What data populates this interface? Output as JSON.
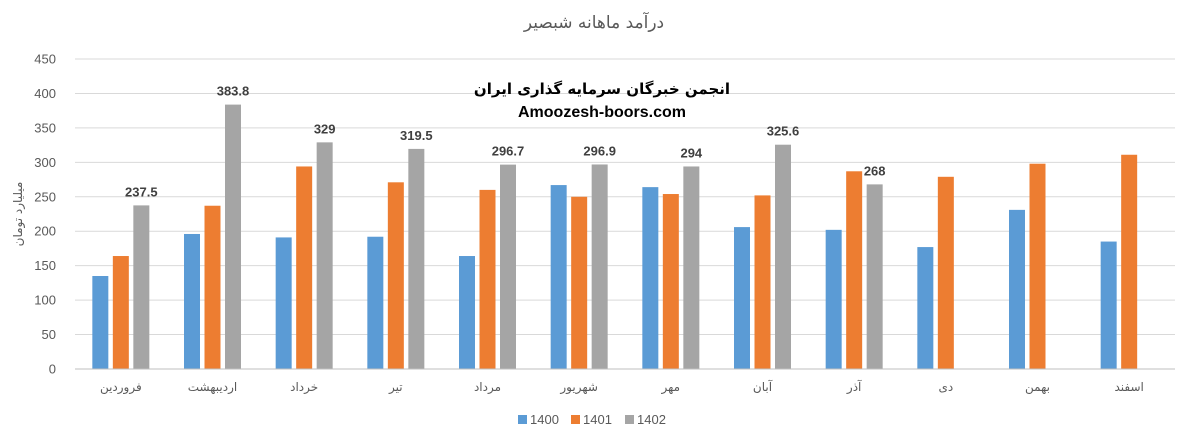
{
  "chart_data": {
    "type": "bar",
    "title": "درآمد ماهانه شبصیر",
    "ylabel": "میلیارد تومان",
    "xlabel": "",
    "ylim": [
      0,
      450
    ],
    "yticks": [
      0,
      50,
      100,
      150,
      200,
      250,
      300,
      350,
      400,
      450
    ],
    "grid": true,
    "legend_position": "bottom",
    "categories": [
      "فروردین",
      "اردیبهشت",
      "خرداد",
      "تیر",
      "مرداد",
      "شهریور",
      "مهر",
      "آبان",
      "آذر",
      "دی",
      "بهمن",
      "اسفند"
    ],
    "series": [
      {
        "name": "1400",
        "color": "#5b9bd5",
        "values": [
          135,
          196,
          191,
          192,
          164,
          267,
          264,
          206,
          202,
          177,
          231,
          185
        ]
      },
      {
        "name": "1401",
        "color": "#ed7d31",
        "values": [
          164,
          237,
          294,
          271,
          260,
          250,
          254,
          252,
          287,
          279,
          298,
          311
        ]
      },
      {
        "name": "1402",
        "color": "#a5a5a5",
        "values": [
          237.5,
          383.8,
          329,
          319.5,
          296.7,
          296.9,
          294,
          325.6,
          268,
          null,
          null,
          null
        ]
      }
    ],
    "data_labels": {
      "series": "1402",
      "labels": [
        "237.5",
        "383.8",
        "329",
        "319.5",
        "296.7",
        "296.9",
        "294",
        "325.6",
        "268",
        null,
        null,
        null
      ]
    }
  },
  "watermark": {
    "line1": "انجمن خبرگان سرمایه گذاری ایران",
    "line2": "Amoozesh-boors.com"
  }
}
